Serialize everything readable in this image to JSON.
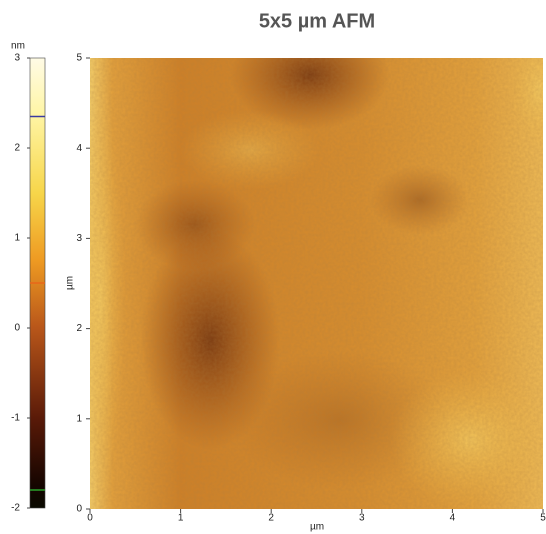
{
  "chart_data": {
    "type": "heatmap",
    "title": "5x5 µm AFM",
    "xlabel": "µm",
    "ylabel": "µm",
    "xlim": [
      0,
      5
    ],
    "xticks": [
      0,
      1,
      2,
      3,
      4,
      5
    ],
    "ylim": [
      0,
      5
    ],
    "yticks": [
      0,
      1,
      2,
      3,
      4,
      5
    ],
    "colorbar": {
      "label": "nm",
      "lim": [
        -2,
        3
      ],
      "ticks": [
        -2,
        -1,
        0,
        1,
        2,
        3
      ],
      "marker_values": [
        2.35,
        0.5,
        -1.8
      ],
      "marker_colors": [
        "#3a3aa0",
        "#e8661a",
        "#2aa02a"
      ]
    }
  }
}
